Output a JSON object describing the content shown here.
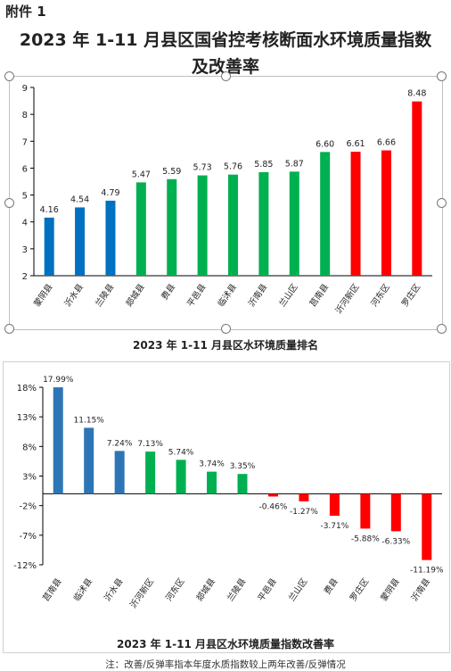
{
  "attachment_label": "附件 1",
  "document_title_line1": "2023 年 1-11 月县区国省控考核断面水环境质量指数",
  "document_title_line2": "及改善率",
  "footnote": "注：改善/反弹率指本年度水质指数较上两年改善/反弹情况",
  "chart_data": [
    {
      "type": "bar",
      "title": "2023 年 1-11 月县区水环境质量排名",
      "categories": [
        "蒙阴县",
        "沂水县",
        "兰陵县",
        "郯城县",
        "费县",
        "平邑县",
        "临沭县",
        "沂南县",
        "兰山区",
        "莒南县",
        "沂河新区",
        "河东区",
        "罗庄区"
      ],
      "values": [
        4.16,
        4.54,
        4.79,
        5.47,
        5.59,
        5.73,
        5.76,
        5.85,
        5.87,
        6.6,
        6.61,
        6.66,
        8.48
      ],
      "value_labels": [
        "4.16",
        "4.54",
        "4.79",
        "5.47",
        "5.59",
        "5.73",
        "5.76",
        "5.85",
        "5.87",
        "6.60",
        "6.61",
        "6.66",
        "8.48"
      ],
      "colors": [
        "#0070C0",
        "#0070C0",
        "#0070C0",
        "#00B050",
        "#00B050",
        "#00B050",
        "#00B050",
        "#00B050",
        "#00B050",
        "#00B050",
        "#FF0000",
        "#FF0000",
        "#FF0000"
      ],
      "ylim": [
        2,
        9
      ],
      "yticks": [
        2,
        3,
        4,
        5,
        6,
        7,
        8,
        9
      ],
      "ytick_labels": [
        "2",
        "3",
        "4",
        "5",
        "6",
        "7",
        "8",
        "9"
      ],
      "grid": false
    },
    {
      "type": "bar",
      "title": "2023 年 1-11 月县区水环境质量指数改善率",
      "categories": [
        "莒南县",
        "临沭县",
        "沂水县",
        "沂河新区",
        "河东区",
        "郯城县",
        "兰陵县",
        "平邑县",
        "兰山区",
        "费县",
        "罗庄区",
        "蒙阴县",
        "沂南县"
      ],
      "values": [
        17.99,
        11.15,
        7.24,
        7.13,
        5.74,
        3.74,
        3.35,
        -0.46,
        -1.27,
        -3.71,
        -5.88,
        -6.33,
        -11.19
      ],
      "value_labels": [
        "17.99%",
        "11.15%",
        "7.24%",
        "7.13%",
        "5.74%",
        "3.74%",
        "3.35%",
        "-0.46%",
        "-1.27%",
        "-3.71%",
        "-5.88%",
        "-6.33%",
        "-11.19%"
      ],
      "colors": [
        "#2E75B6",
        "#2E75B6",
        "#2E75B6",
        "#00B050",
        "#00B050",
        "#00B050",
        "#00B050",
        "#FF0000",
        "#FF0000",
        "#FF0000",
        "#FF0000",
        "#FF0000",
        "#FF0000"
      ],
      "ylim": [
        -12,
        18
      ],
      "yticks": [
        -12,
        -7,
        -2,
        3,
        8,
        13,
        18
      ],
      "ytick_labels": [
        "-12%",
        "-7%",
        "-2%",
        "3%",
        "8%",
        "13%",
        "18%"
      ],
      "grid": false
    }
  ]
}
